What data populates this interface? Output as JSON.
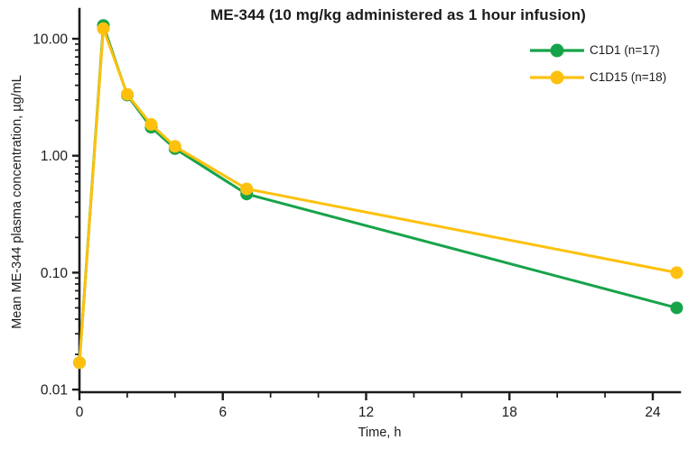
{
  "chart_data": {
    "type": "line",
    "title": "ME-344 (10 mg/kg administered as 1 hour infusion)",
    "xlabel": "Time, h",
    "ylabel": "Mean ME-344 plasma concentration, µg/mL",
    "grid": false,
    "background_color": "#ffffff",
    "axis_color": "#1b1b1b",
    "text_color": "#1b1b1b",
    "x_axis": {
      "min": 0,
      "max": 25.2,
      "major_ticks": [
        0,
        6,
        12,
        18,
        24
      ],
      "minor_ticks": [
        2,
        4,
        8,
        10,
        14,
        16,
        20,
        22
      ]
    },
    "y_axis": {
      "scale": "log",
      "min": 0.0095,
      "max": 17.9,
      "ticks": [
        {
          "value": 10,
          "label": "10.00"
        },
        {
          "value": 1,
          "label": "1.00"
        },
        {
          "value": 0.1,
          "label": "0.10"
        },
        {
          "value": 0.01,
          "label": "0.01"
        }
      ],
      "minor_tick_decades": [
        1,
        0.1,
        0.01
      ]
    },
    "legend": {
      "position": "top-right"
    },
    "series": [
      {
        "name": "C1D1 (n=17)",
        "color": "#17a34a",
        "marker": "circle",
        "x": [
          0,
          1,
          2,
          3,
          4,
          7,
          25
        ],
        "values": [
          0.017,
          13.0,
          3.3,
          1.75,
          1.15,
          0.47,
          0.05
        ]
      },
      {
        "name": "C1D15 (n=18)",
        "color": "#fdc10d",
        "marker": "circle",
        "x": [
          0,
          1,
          2,
          3,
          4,
          7,
          25
        ],
        "values": [
          0.017,
          12.2,
          3.35,
          1.85,
          1.2,
          0.52,
          0.1
        ]
      }
    ]
  }
}
